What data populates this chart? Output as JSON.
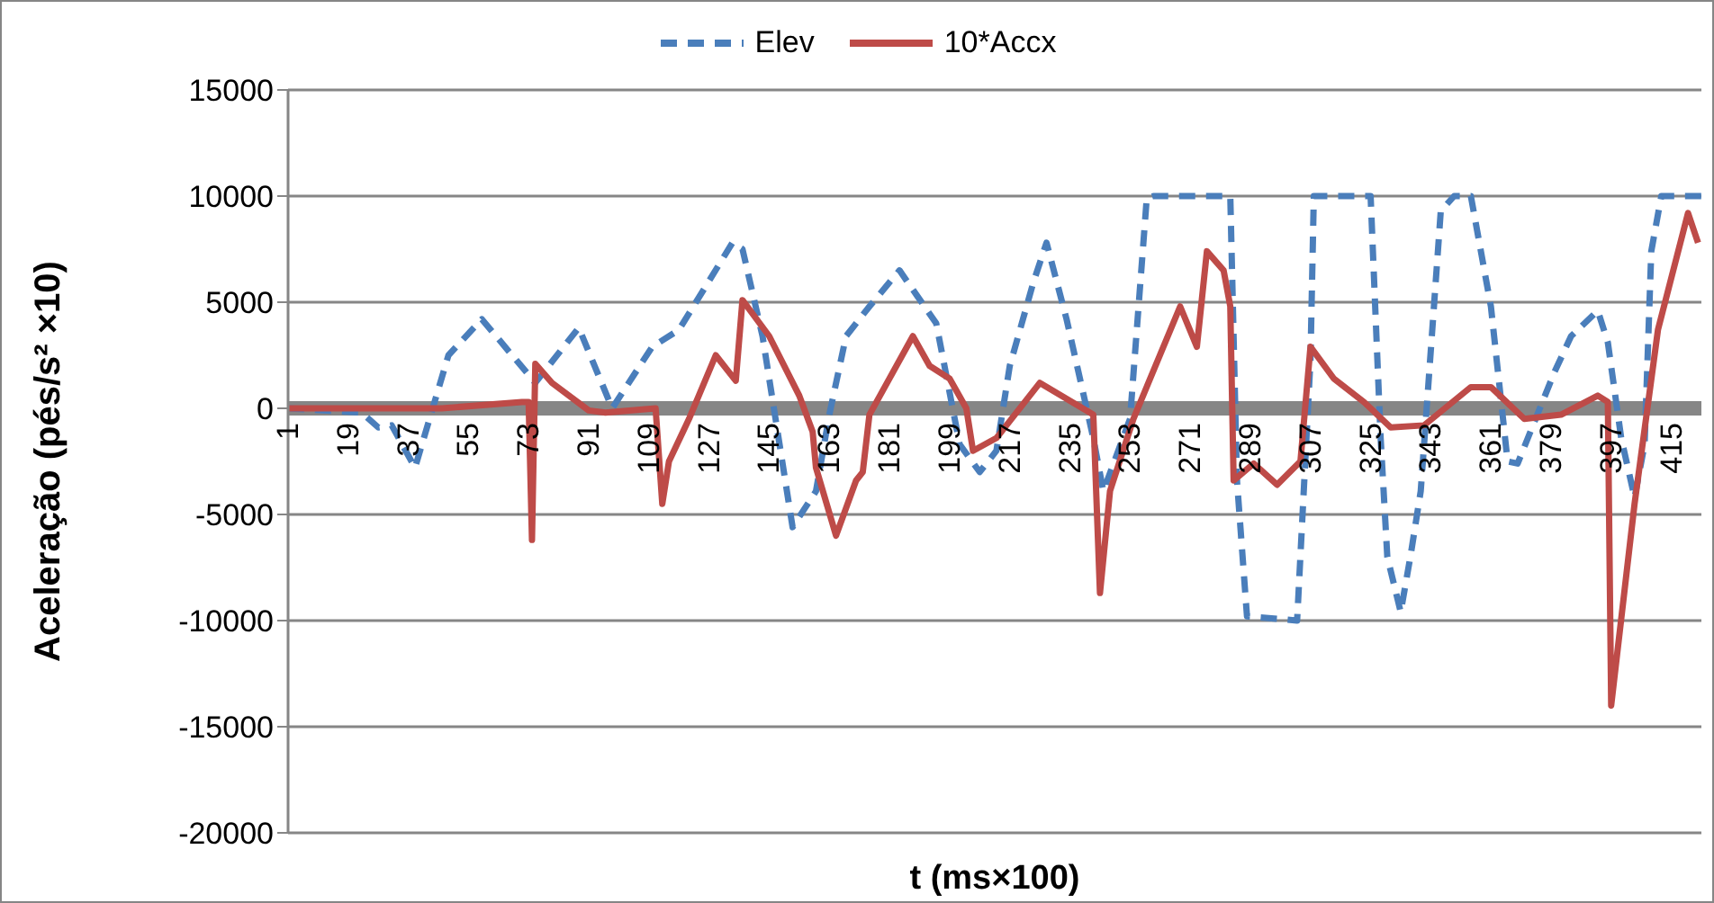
{
  "chart_data": {
    "type": "line",
    "xlabel": "t (ms×100)",
    "ylabel": "Aceleração (pés/s² ×10)",
    "xlim": [
      1,
      424
    ],
    "xticks": [
      1,
      19,
      37,
      55,
      73,
      91,
      109,
      127,
      145,
      163,
      181,
      199,
      217,
      235,
      253,
      271,
      289,
      307,
      325,
      343,
      361,
      379,
      397,
      415
    ],
    "ylim": [
      -20000,
      15000
    ],
    "yticks": [
      -20000,
      -15000,
      -10000,
      -5000,
      0,
      5000,
      10000,
      15000
    ],
    "grid": "y",
    "legend": "top",
    "marker": "none",
    "series": [
      {
        "name": "Elev",
        "color": "#4a7ebb",
        "line_style": "dashed",
        "x": [
          1,
          23,
          28,
          32,
          39,
          49,
          59,
          75,
          88,
          98,
          110,
          118,
          134,
          137,
          143,
          152,
          159,
          163,
          168,
          175,
          184,
          195,
          202,
          208,
          213,
          217,
          224,
          228,
          234,
          242,
          245,
          253,
          258,
          260,
          283,
          285,
          288,
          303,
          307,
          308,
          325,
          328,
          330,
          334,
          337,
          340,
          346,
          350,
          355,
          361,
          366,
          369,
          380,
          385,
          393,
          396,
          400,
          404,
          407,
          409,
          412,
          424
        ],
        "values": [
          0,
          -200,
          -900,
          -800,
          -2800,
          2500,
          4200,
          1200,
          3800,
          0,
          2900,
          3700,
          7800,
          7500,
          3400,
          -5600,
          -3900,
          -300,
          3400,
          4800,
          6500,
          4000,
          -1700,
          -3000,
          -2000,
          2000,
          5900,
          7800,
          4200,
          -1400,
          -3900,
          -500,
          9900,
          10000,
          10000,
          -3400,
          -9800,
          -10000,
          2300,
          10000,
          10000,
          -1400,
          -7000,
          -9600,
          -6900,
          -3900,
          9300,
          10000,
          10000,
          4800,
          -2500,
          -2600,
          1700,
          3400,
          4600,
          3100,
          -1400,
          -4200,
          -1700,
          7400,
          10000,
          10000
        ]
      },
      {
        "name": "10*Accx",
        "color": "#be4b48",
        "line_style": "solid",
        "x": [
          1,
          47,
          71,
          73,
          74,
          75,
          80,
          91,
          96,
          111,
          113,
          115,
          121,
          129,
          135,
          137,
          145,
          154,
          158,
          159,
          165,
          171,
          173,
          175,
          188,
          193,
          199,
          204,
          206,
          213,
          226,
          242,
          244,
          247,
          254,
          268,
          273,
          276,
          281,
          283,
          284,
          290,
          297,
          304,
          307,
          314,
          323,
          331,
          341,
          355,
          361,
          371,
          382,
          393,
          396,
          397,
          404,
          411,
          420,
          423
        ],
        "values": [
          0,
          0,
          300,
          300,
          -6200,
          2100,
          1200,
          -100,
          -200,
          0,
          -4500,
          -2500,
          -500,
          2500,
          1300,
          5100,
          3400,
          600,
          -1100,
          -2800,
          -6000,
          -3400,
          -3000,
          -300,
          3400,
          2000,
          1400,
          0,
          -2000,
          -1400,
          1200,
          -300,
          -8700,
          -3900,
          -500,
          4800,
          2900,
          7400,
          6500,
          4800,
          -3400,
          -2600,
          -3600,
          -2500,
          2900,
          1400,
          300,
          -900,
          -800,
          1000,
          1000,
          -500,
          -300,
          600,
          300,
          -14000,
          -4500,
          3700,
          9200,
          7800
        ]
      }
    ]
  }
}
